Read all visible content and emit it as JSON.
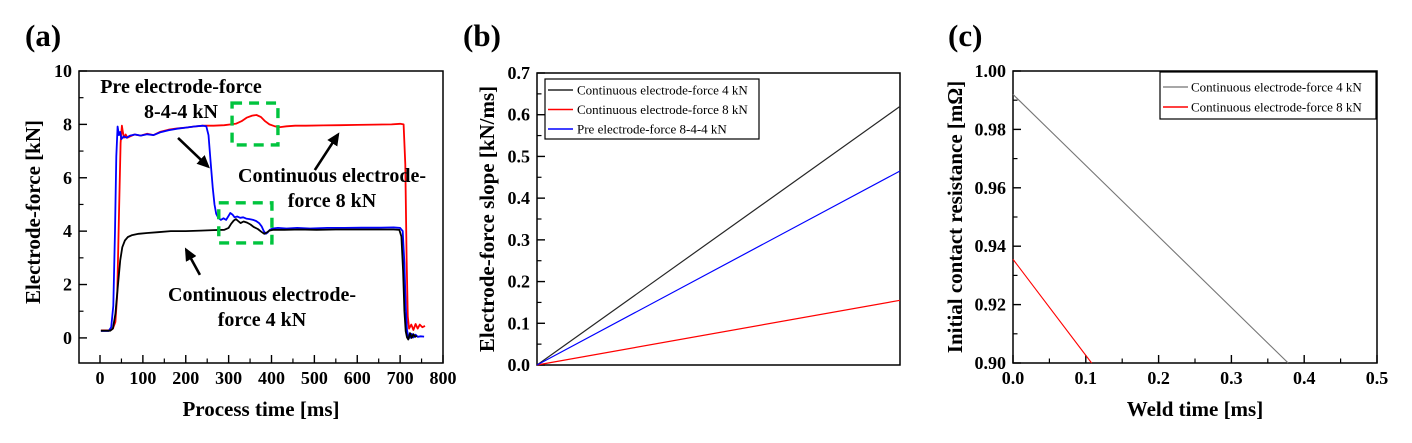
{
  "figure": {
    "background": "#ffffff",
    "highlight_color": "#00c43e"
  },
  "chart_data": [
    {
      "id": "a",
      "label": "(a)",
      "type": "line",
      "xlabel": "Process time [ms]",
      "ylabel": "Electrode-force [kN]",
      "xlim": [
        -49,
        800
      ],
      "ylim": [
        -0.94,
        10
      ],
      "xticks": {
        "values": [
          0,
          100,
          200,
          300,
          400,
          500,
          600,
          700,
          800
        ],
        "labels": [
          "0",
          "100",
          "200",
          "300",
          "400",
          "500",
          "600",
          "700",
          "800"
        ],
        "minor_step": 50
      },
      "yticks": {
        "values": [
          0,
          2,
          4,
          6,
          8,
          10
        ],
        "labels": [
          "0",
          "2",
          "4",
          "6",
          "8",
          "10"
        ],
        "minor_step": 1
      },
      "series": [
        {
          "name": "Continuous electrode-force 8 kN",
          "color": "#fe0000",
          "width": 1.8,
          "points": [
            [
              2,
              0.28
            ],
            [
              24,
              0.28
            ],
            [
              30,
              0.35
            ],
            [
              36,
              0.6
            ],
            [
              40,
              1.6
            ],
            [
              44,
              4.5
            ],
            [
              48,
              7.3
            ],
            [
              51,
              7.95
            ],
            [
              53,
              7.75
            ],
            [
              56,
              7.5
            ],
            [
              60,
              7.62
            ],
            [
              64,
              7.5
            ],
            [
              70,
              7.55
            ],
            [
              80,
              7.62
            ],
            [
              95,
              7.58
            ],
            [
              110,
              7.65
            ],
            [
              125,
              7.6
            ],
            [
              140,
              7.72
            ],
            [
              160,
              7.8
            ],
            [
              180,
              7.85
            ],
            [
              200,
              7.88
            ],
            [
              220,
              7.92
            ],
            [
              240,
              7.95
            ],
            [
              265,
              7.95
            ],
            [
              290,
              7.97
            ],
            [
              305,
              8.0
            ],
            [
              318,
              8.03
            ],
            [
              330,
              8.12
            ],
            [
              342,
              8.25
            ],
            [
              355,
              8.33
            ],
            [
              365,
              8.35
            ],
            [
              375,
              8.28
            ],
            [
              385,
              8.12
            ],
            [
              395,
              8.0
            ],
            [
              408,
              7.93
            ],
            [
              420,
              7.9
            ],
            [
              435,
              7.93
            ],
            [
              455,
              7.95
            ],
            [
              480,
              7.95
            ],
            [
              520,
              7.96
            ],
            [
              560,
              7.97
            ],
            [
              600,
              7.98
            ],
            [
              640,
              7.99
            ],
            [
              680,
              8.0
            ],
            [
              700,
              8.02
            ],
            [
              708,
              8.0
            ],
            [
              712,
              6.5
            ],
            [
              715,
              3.0
            ],
            [
              718,
              0.8
            ],
            [
              721,
              0.35
            ],
            [
              726,
              0.5
            ],
            [
              731,
              0.3
            ],
            [
              736,
              0.52
            ],
            [
              741,
              0.35
            ],
            [
              746,
              0.5
            ],
            [
              752,
              0.4
            ],
            [
              758,
              0.45
            ]
          ]
        },
        {
          "name": "Pre electrode-force 8-4-4 kN",
          "color": "#0000fe",
          "width": 1.8,
          "points": [
            [
              2,
              0.26
            ],
            [
              20,
              0.26
            ],
            [
              26,
              0.4
            ],
            [
              31,
              1.2
            ],
            [
              35,
              4.0
            ],
            [
              38,
              6.8
            ],
            [
              41,
              7.92
            ],
            [
              44,
              7.6
            ],
            [
              47,
              7.72
            ],
            [
              50,
              7.45
            ],
            [
              55,
              7.55
            ],
            [
              62,
              7.5
            ],
            [
              70,
              7.58
            ],
            [
              82,
              7.62
            ],
            [
              95,
              7.58
            ],
            [
              110,
              7.63
            ],
            [
              125,
              7.6
            ],
            [
              140,
              7.7
            ],
            [
              160,
              7.78
            ],
            [
              180,
              7.84
            ],
            [
              200,
              7.88
            ],
            [
              220,
              7.92
            ],
            [
              240,
              7.95
            ],
            [
              248,
              7.93
            ],
            [
              253,
              7.6
            ],
            [
              258,
              6.6
            ],
            [
              263,
              5.6
            ],
            [
              267,
              5.0
            ],
            [
              271,
              4.65
            ],
            [
              276,
              4.5
            ],
            [
              282,
              4.42
            ],
            [
              288,
              4.48
            ],
            [
              294,
              4.42
            ],
            [
              299,
              4.55
            ],
            [
              304,
              4.68
            ],
            [
              309,
              4.62
            ],
            [
              314,
              4.52
            ],
            [
              320,
              4.55
            ],
            [
              327,
              4.5
            ],
            [
              334,
              4.52
            ],
            [
              341,
              4.47
            ],
            [
              349,
              4.45
            ],
            [
              357,
              4.42
            ],
            [
              364,
              4.38
            ],
            [
              371,
              4.3
            ],
            [
              377,
              4.18
            ],
            [
              382,
              4.0
            ],
            [
              387,
              3.9
            ],
            [
              391,
              3.95
            ],
            [
              396,
              4.05
            ],
            [
              402,
              4.1
            ],
            [
              415,
              4.12
            ],
            [
              435,
              4.1
            ],
            [
              460,
              4.12
            ],
            [
              490,
              4.1
            ],
            [
              530,
              4.12
            ],
            [
              570,
              4.12
            ],
            [
              610,
              4.13
            ],
            [
              650,
              4.13
            ],
            [
              685,
              4.14
            ],
            [
              700,
              4.12
            ],
            [
              706,
              4.0
            ],
            [
              710,
              2.8
            ],
            [
              713,
              1.2
            ],
            [
              716,
              0.3
            ],
            [
              719,
              0.05
            ],
            [
              723,
              0.0
            ],
            [
              727,
              0.15
            ],
            [
              731,
              0.02
            ],
            [
              736,
              0.12
            ],
            [
              741,
              0.04
            ],
            [
              748,
              0.06
            ],
            [
              756,
              0.05
            ]
          ]
        },
        {
          "name": "Continuous electrode-force 4 kN",
          "color": "#000000",
          "width": 1.8,
          "points": [
            [
              2,
              0.27
            ],
            [
              24,
              0.27
            ],
            [
              30,
              0.35
            ],
            [
              36,
              0.9
            ],
            [
              42,
              2.0
            ],
            [
              47,
              2.9
            ],
            [
              52,
              3.4
            ],
            [
              58,
              3.65
            ],
            [
              65,
              3.78
            ],
            [
              75,
              3.85
            ],
            [
              90,
              3.9
            ],
            [
              110,
              3.93
            ],
            [
              135,
              3.96
            ],
            [
              165,
              4.0
            ],
            [
              200,
              4.0
            ],
            [
              235,
              4.02
            ],
            [
              265,
              4.04
            ],
            [
              290,
              4.05
            ],
            [
              300,
              4.12
            ],
            [
              306,
              4.28
            ],
            [
              312,
              4.4
            ],
            [
              317,
              4.45
            ],
            [
              322,
              4.38
            ],
            [
              328,
              4.3
            ],
            [
              335,
              4.36
            ],
            [
              343,
              4.32
            ],
            [
              351,
              4.25
            ],
            [
              359,
              4.15
            ],
            [
              368,
              4.08
            ],
            [
              376,
              3.98
            ],
            [
              383,
              3.9
            ],
            [
              389,
              3.95
            ],
            [
              395,
              4.02
            ],
            [
              405,
              4.05
            ],
            [
              430,
              4.05
            ],
            [
              465,
              4.06
            ],
            [
              505,
              4.05
            ],
            [
              550,
              4.06
            ],
            [
              600,
              4.06
            ],
            [
              650,
              4.06
            ],
            [
              685,
              4.06
            ],
            [
              698,
              4.05
            ],
            [
              703,
              3.8
            ],
            [
              707,
              2.5
            ],
            [
              710,
              1.0
            ],
            [
              713,
              0.25
            ],
            [
              716,
              0.02
            ],
            [
              719,
              -0.06
            ],
            [
              723,
              0.18
            ],
            [
              727,
              0.0
            ],
            [
              731,
              0.14
            ],
            [
              735,
              0.04
            ],
            [
              739,
              0.08
            ]
          ]
        }
      ],
      "highlight_boxes": [
        {
          "x0": 308,
          "y0": 7.23,
          "x1": 415,
          "y1": 8.8,
          "color": "#00c43e"
        },
        {
          "x0": 277,
          "y0": 3.56,
          "x1": 401,
          "y1": 5.06,
          "color": "#00c43e"
        }
      ],
      "annotations": [
        {
          "lines": [
            "Pre electrode-force",
            "8-4-4 kN"
          ]
        },
        {
          "lines": [
            "Continuous electrode-",
            "force 8 kN"
          ]
        },
        {
          "lines": [
            "Continuous electrode-",
            "force 4 kN"
          ]
        }
      ],
      "arrows": [
        {
          "x1": 182,
          "y1": 7.49,
          "x2": 252,
          "y2": 6.42
        },
        {
          "x1": 501,
          "y1": 6.29,
          "x2": 555,
          "y2": 7.62
        },
        {
          "x1": 233,
          "y1": 2.36,
          "x2": 201,
          "y2": 3.3
        }
      ]
    },
    {
      "id": "b",
      "label": "(b)",
      "type": "line",
      "xlabel": "",
      "ylabel": "Electrode-force slope [kN/ms]",
      "xlim": [
        0,
        1
      ],
      "ylim": [
        0,
        0.7
      ],
      "xticks": {
        "values": [],
        "labels": [],
        "minor_step": null
      },
      "yticks": {
        "values": [
          0.0,
          0.1,
          0.2,
          0.3,
          0.4,
          0.5,
          0.6,
          0.7
        ],
        "labels": [
          "0.0",
          "0.1",
          "0.2",
          "0.3",
          "0.4",
          "0.5",
          "0.6",
          "0.7"
        ],
        "minor_step": 0.05
      },
      "legend": {
        "position": "top-left",
        "items": [
          {
            "label": "Continuous electrode-force 4 kN",
            "color": "#262626"
          },
          {
            "label": "Continuous electrode-force 8 kN",
            "color": "#ff0000"
          },
          {
            "label": "Pre electrode-force 8-4-4 kN",
            "color": "#0000ff"
          }
        ]
      },
      "series": [
        {
          "name": "Continuous electrode-force 4 kN",
          "color": "#262626",
          "width": 1.2,
          "points": [
            [
              0,
              0
            ],
            [
              1,
              0.62
            ]
          ]
        },
        {
          "name": "Continuous electrode-force 8 kN",
          "color": "#ff0000",
          "width": 1.2,
          "points": [
            [
              0,
              0
            ],
            [
              1,
              0.155
            ]
          ]
        },
        {
          "name": "Pre electrode-force 8-4-4 kN",
          "color": "#0000ff",
          "width": 1.2,
          "points": [
            [
              0,
              0
            ],
            [
              1,
              0.465
            ]
          ]
        }
      ]
    },
    {
      "id": "c",
      "label": "(c)",
      "type": "line",
      "xlabel": "Weld time [ms]",
      "ylabel": "Initial contact resistance [mΩ]",
      "xlim": [
        0,
        0.5
      ],
      "ylim": [
        0.9,
        1.0
      ],
      "xticks": {
        "values": [
          0.0,
          0.1,
          0.2,
          0.3,
          0.4,
          0.5
        ],
        "labels": [
          "0.0",
          "0.1",
          "0.2",
          "0.3",
          "0.4",
          "0.5"
        ],
        "minor_step": 0.05
      },
      "yticks": {
        "values": [
          0.9,
          0.92,
          0.94,
          0.96,
          0.98,
          1.0
        ],
        "labels": [
          "0.90",
          "0.92",
          "0.94",
          "0.96",
          "0.98",
          "1.00"
        ],
        "minor_step": 0.01
      },
      "legend": {
        "position": "top-right",
        "items": [
          {
            "label": "Continuous electrode-force 4 kN",
            "color": "#8a8a8a"
          },
          {
            "label": "Continuous electrode-force 8 kN",
            "color": "#ff0000"
          }
        ]
      },
      "series": [
        {
          "name": "Continuous electrode-force 4 kN",
          "color": "#757575",
          "width": 1.1,
          "points": [
            [
              0,
              0.992
            ],
            [
              0.378,
              0.9
            ]
          ]
        },
        {
          "name": "Continuous electrode-force 8 kN",
          "color": "#ff0000",
          "width": 1.1,
          "points": [
            [
              0,
              0.9355
            ],
            [
              0.108,
              0.9
            ]
          ]
        }
      ]
    }
  ]
}
